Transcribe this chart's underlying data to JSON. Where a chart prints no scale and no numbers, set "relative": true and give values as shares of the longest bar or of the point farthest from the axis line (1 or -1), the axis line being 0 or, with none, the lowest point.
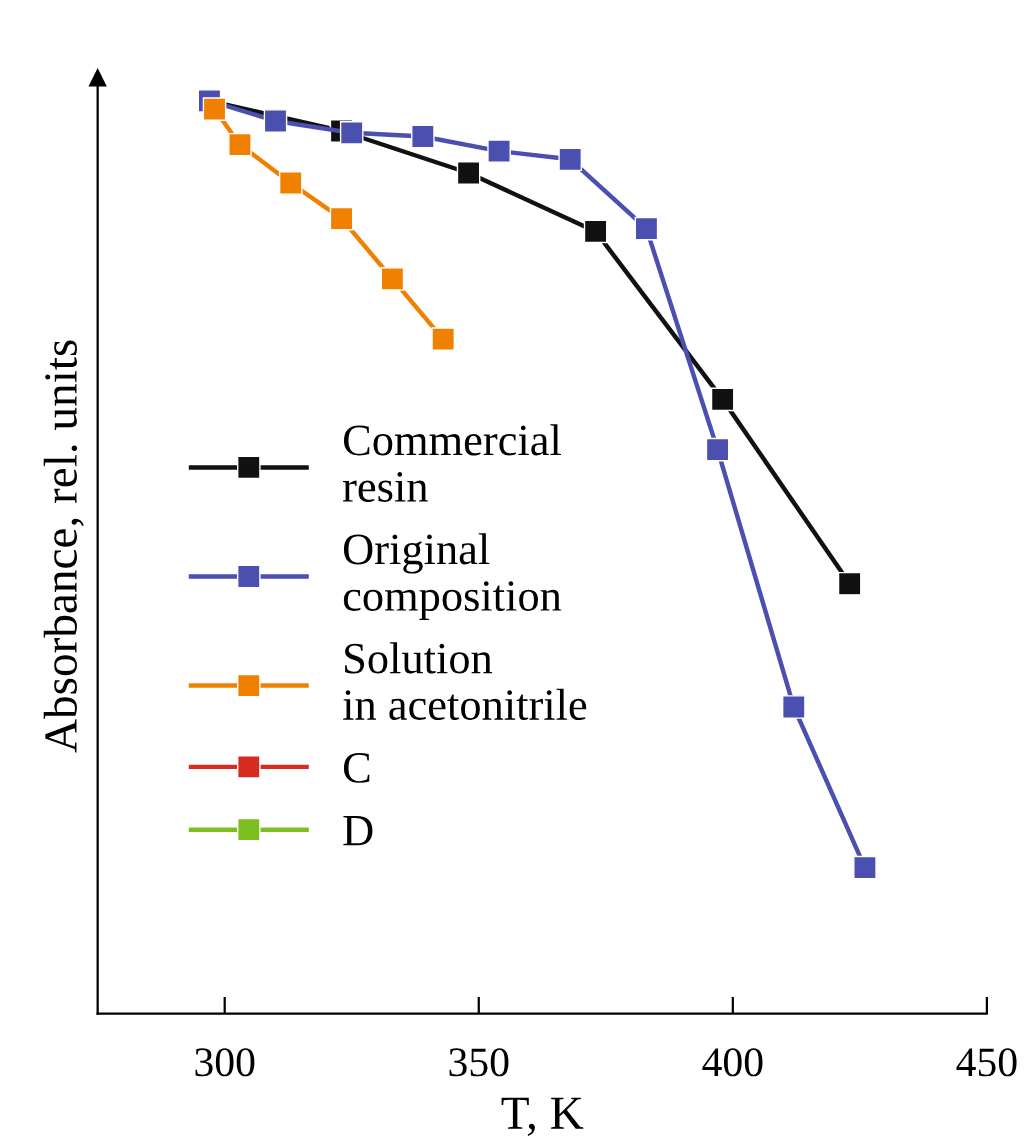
{
  "chart_data": {
    "type": "line",
    "xlabel": "T, K",
    "ylabel": "Absorbance, rel. units",
    "relative": true,
    "xlim": [
      275,
      450
    ],
    "xticks": [
      300,
      350,
      400,
      450
    ],
    "marker": "square",
    "line_style": "solid",
    "grid": false,
    "legend": "left",
    "series": [
      {
        "name": "Commercial\nresin",
        "color": "#111111",
        "x": [
          297,
          323,
          348,
          373,
          398,
          423
        ],
        "values": [
          1.0,
          0.967,
          0.921,
          0.857,
          0.673,
          0.471
        ]
      },
      {
        "name": "Original\ncomposition",
        "color": "#4b4fb0",
        "x": [
          297,
          310,
          325,
          339,
          354,
          368,
          383,
          397,
          412,
          426
        ],
        "values": [
          1.0,
          0.978,
          0.965,
          0.961,
          0.945,
          0.936,
          0.86,
          0.618,
          0.336,
          0.16
        ]
      },
      {
        "name": "Solution\nin acetonitrile",
        "color": "#f08000",
        "x": [
          298,
          303,
          313,
          323,
          333,
          343
        ],
        "values": [
          0.991,
          0.952,
          0.91,
          0.871,
          0.805,
          0.739
        ]
      },
      {
        "name": "C",
        "color": "#d62b1e"
      },
      {
        "name": "D",
        "color": "#7cbf1f"
      }
    ]
  }
}
